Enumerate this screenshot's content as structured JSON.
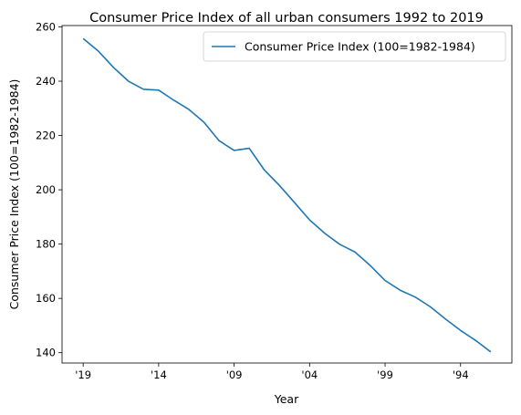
{
  "chart_data": {
    "type": "line",
    "title": "Consumer Price Index of all urban consumers 1992 to 2019",
    "xlabel": "Year",
    "ylabel": "Consumer Price Index (100=1982-1984)",
    "x_direction": "descending",
    "x": [
      2019,
      2018,
      2017,
      2016,
      2015,
      2014,
      2013,
      2012,
      2011,
      2010,
      2009,
      2008,
      2007,
      2006,
      2005,
      2004,
      2003,
      2002,
      2001,
      2000,
      1999,
      1998,
      1997,
      1996,
      1995,
      1994,
      1993,
      1992
    ],
    "x_ticks": [
      {
        "value": 2019,
        "label": "'19"
      },
      {
        "value": 2014,
        "label": "'14"
      },
      {
        "value": 2009,
        "label": "'09"
      },
      {
        "value": 2004,
        "label": "'04"
      },
      {
        "value": 1999,
        "label": "'99"
      },
      {
        "value": 1994,
        "label": "'94"
      }
    ],
    "y_ticks": [
      140,
      160,
      180,
      200,
      220,
      240,
      260
    ],
    "ylim": [
      136.2,
      260.5
    ],
    "xlim": [
      2020.4,
      1990.6
    ],
    "grid": false,
    "legend_position": "top-right",
    "series": [
      {
        "name": "Consumer Price Index (100=1982-1984)",
        "color": "#1f77b4",
        "values": [
          255.7,
          251.1,
          245.1,
          240.0,
          237.0,
          236.7,
          233.0,
          229.6,
          224.9,
          218.1,
          214.5,
          215.3,
          207.3,
          201.6,
          195.3,
          188.9,
          184.0,
          179.9,
          177.1,
          172.2,
          166.6,
          163.0,
          160.5,
          156.9,
          152.4,
          148.2,
          144.5,
          140.3
        ]
      }
    ]
  }
}
